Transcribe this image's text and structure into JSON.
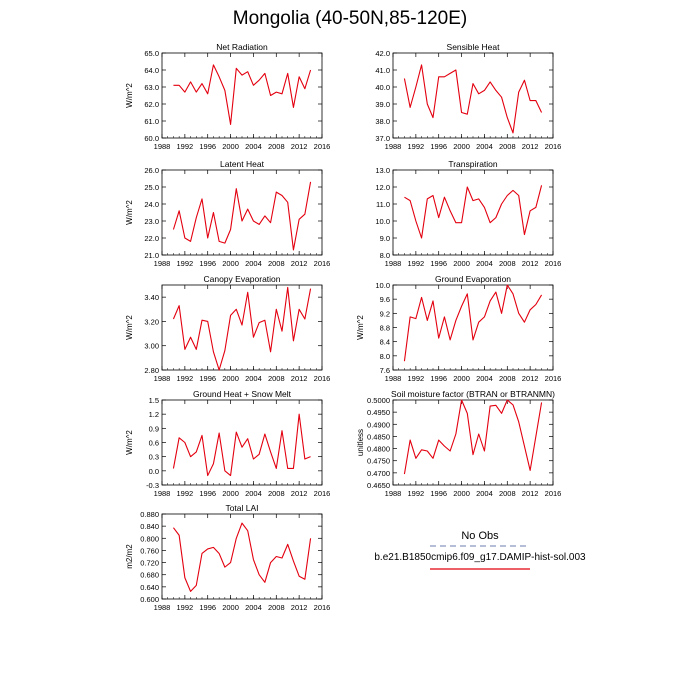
{
  "title": "Mongolia (40-50N,85-120E)",
  "colors": {
    "obs": "#9da7c9",
    "model": "#e3000f",
    "axis": "#000000"
  },
  "legend": {
    "obs_label": "No Obs",
    "model_label": "b.e21.B1850cmip6.f09_g17.DAMIP-hist-sol.003"
  },
  "chart_data": [
    {
      "type": "line",
      "title": "Net Radiation",
      "ylabel": "W/m^2",
      "xlim": [
        1988,
        2016
      ],
      "ylim": [
        60.0,
        65.0
      ],
      "xticks": [
        "1988",
        "1992",
        "1996",
        "2000",
        "2004",
        "2008",
        "2012",
        "2016"
      ],
      "yticks": [
        "60.0",
        "61.0",
        "62.0",
        "63.0",
        "64.0",
        "65.0"
      ],
      "x": [
        1990,
        1991,
        1992,
        1993,
        1994,
        1995,
        1996,
        1997,
        1998,
        1999,
        2000,
        2001,
        2002,
        2003,
        2004,
        2005,
        2006,
        2007,
        2008,
        2009,
        2010,
        2011,
        2012,
        2013,
        2014
      ],
      "series": [
        {
          "values": [
            63.1,
            63.1,
            62.7,
            63.3,
            62.7,
            63.2,
            62.6,
            64.3,
            63.6,
            62.8,
            60.8,
            64.1,
            63.7,
            63.9,
            63.1,
            63.4,
            63.8,
            62.5,
            62.7,
            62.6,
            63.8,
            61.8,
            63.6,
            62.9,
            64.0
          ]
        }
      ]
    },
    {
      "type": "line",
      "title": "Sensible Heat",
      "ylabel": "",
      "xlim": [
        1988,
        2016
      ],
      "ylim": [
        37.0,
        42.0
      ],
      "xticks": [
        "1988",
        "1992",
        "1996",
        "2000",
        "2004",
        "2008",
        "2012",
        "2016"
      ],
      "yticks": [
        "37.0",
        "38.0",
        "39.0",
        "40.0",
        "41.0",
        "42.0"
      ],
      "x": [
        1990,
        1991,
        1992,
        1993,
        1994,
        1995,
        1996,
        1997,
        1998,
        1999,
        2000,
        2001,
        2002,
        2003,
        2004,
        2005,
        2006,
        2007,
        2008,
        2009,
        2010,
        2011,
        2012,
        2013,
        2014
      ],
      "series": [
        {
          "values": [
            40.5,
            38.8,
            40.0,
            41.3,
            39.0,
            38.2,
            40.6,
            40.6,
            40.8,
            41.0,
            38.5,
            38.4,
            40.2,
            39.6,
            39.8,
            40.3,
            39.8,
            39.4,
            38.2,
            37.3,
            39.7,
            40.4,
            39.2,
            39.2,
            38.5
          ]
        }
      ]
    },
    {
      "type": "line",
      "title": "Latent Heat",
      "ylabel": "W/m^2",
      "xlim": [
        1988,
        2016
      ],
      "ylim": [
        21.0,
        26.0
      ],
      "xticks": [
        "1988",
        "1992",
        "1996",
        "2000",
        "2004",
        "2008",
        "2012",
        "2016"
      ],
      "yticks": [
        "21.0",
        "22.0",
        "23.0",
        "24.0",
        "25.0",
        "26.0"
      ],
      "x": [
        1990,
        1991,
        1992,
        1993,
        1994,
        1995,
        1996,
        1997,
        1998,
        1999,
        2000,
        2001,
        2002,
        2003,
        2004,
        2005,
        2006,
        2007,
        2008,
        2009,
        2010,
        2011,
        2012,
        2013,
        2014
      ],
      "series": [
        {
          "values": [
            22.5,
            23.6,
            22.0,
            21.8,
            23.2,
            24.3,
            22.0,
            23.5,
            21.8,
            21.7,
            22.5,
            24.9,
            23.0,
            23.7,
            23.0,
            22.8,
            23.3,
            22.9,
            24.7,
            24.5,
            24.1,
            21.3,
            23.1,
            23.4,
            25.3
          ]
        }
      ]
    },
    {
      "type": "line",
      "title": "Transpiration",
      "ylabel": "",
      "xlim": [
        1988,
        2016
      ],
      "ylim": [
        8.0,
        13.0
      ],
      "xticks": [
        "1988",
        "1992",
        "1996",
        "2000",
        "2004",
        "2008",
        "2012",
        "2016"
      ],
      "yticks": [
        "8.0",
        "9.0",
        "10.0",
        "11.0",
        "12.0",
        "13.0"
      ],
      "x": [
        1990,
        1991,
        1992,
        1993,
        1994,
        1995,
        1996,
        1997,
        1998,
        1999,
        2000,
        2001,
        2002,
        2003,
        2004,
        2005,
        2006,
        2007,
        2008,
        2009,
        2010,
        2011,
        2012,
        2013,
        2014
      ],
      "series": [
        {
          "values": [
            11.4,
            11.2,
            10.0,
            9.0,
            11.3,
            11.5,
            10.2,
            11.4,
            10.6,
            9.9,
            9.9,
            12.0,
            11.2,
            11.3,
            10.8,
            9.9,
            10.2,
            11.0,
            11.5,
            11.8,
            11.5,
            9.2,
            10.6,
            10.8,
            12.1
          ]
        }
      ]
    },
    {
      "type": "line",
      "title": "Canopy Evaporation",
      "ylabel": "W/m^2",
      "xlim": [
        1988,
        2016
      ],
      "ylim": [
        2.8,
        3.5
      ],
      "xticks": [
        "1988",
        "1992",
        "1996",
        "2000",
        "2004",
        "2008",
        "2012",
        "2016"
      ],
      "yticks": [
        "2.80",
        "3.00",
        "3.20",
        "3.40"
      ],
      "x": [
        1990,
        1991,
        1992,
        1993,
        1994,
        1995,
        1996,
        1997,
        1998,
        1999,
        2000,
        2001,
        2002,
        2003,
        2004,
        2005,
        2006,
        2007,
        2008,
        2009,
        2010,
        2011,
        2012,
        2013,
        2014
      ],
      "series": [
        {
          "values": [
            3.22,
            3.33,
            2.97,
            3.07,
            2.97,
            3.21,
            3.2,
            2.95,
            2.8,
            2.96,
            3.25,
            3.3,
            3.17,
            3.44,
            3.07,
            3.19,
            3.21,
            2.95,
            3.3,
            3.12,
            3.48,
            3.04,
            3.3,
            3.22,
            3.47
          ]
        }
      ]
    },
    {
      "type": "line",
      "title": "Ground Evaporation",
      "ylabel": "W/m^2",
      "xlim": [
        1988,
        2016
      ],
      "ylim": [
        7.6,
        10.0
      ],
      "xticks": [
        "1988",
        "1992",
        "1996",
        "2000",
        "2004",
        "2008",
        "2012",
        "2016"
      ],
      "yticks": [
        "7.6",
        "8.0",
        "8.4",
        "8.8",
        "9.2",
        "9.6",
        "10.0"
      ],
      "x": [
        1990,
        1991,
        1992,
        1993,
        1994,
        1995,
        1996,
        1997,
        1998,
        1999,
        2000,
        2001,
        2002,
        2003,
        2004,
        2005,
        2006,
        2007,
        2008,
        2009,
        2010,
        2011,
        2012,
        2013,
        2014
      ],
      "series": [
        {
          "values": [
            7.85,
            9.1,
            9.05,
            9.65,
            9.0,
            9.55,
            8.5,
            9.1,
            8.45,
            9.0,
            9.4,
            9.75,
            8.45,
            8.95,
            9.1,
            9.55,
            9.8,
            9.2,
            10.0,
            9.75,
            9.2,
            8.95,
            9.3,
            9.45,
            9.72
          ]
        }
      ]
    },
    {
      "type": "line",
      "title": "Ground Heat + Snow Melt",
      "ylabel": "W/m^2",
      "xlim": [
        1988,
        2016
      ],
      "ylim": [
        -0.3,
        1.5
      ],
      "xticks": [
        "1988",
        "1992",
        "1996",
        "2000",
        "2004",
        "2008",
        "2012",
        "2016"
      ],
      "yticks": [
        "-0.3",
        "0.0",
        "0.3",
        "0.6",
        "0.9",
        "1.2",
        "1.5"
      ],
      "x": [
        1990,
        1991,
        1992,
        1993,
        1994,
        1995,
        1996,
        1997,
        1998,
        1999,
        2000,
        2001,
        2002,
        2003,
        2004,
        2005,
        2006,
        2007,
        2008,
        2009,
        2010,
        2011,
        2012,
        2013,
        2014
      ],
      "series": [
        {
          "values": [
            0.05,
            0.7,
            0.6,
            0.3,
            0.4,
            0.75,
            -0.1,
            0.15,
            0.8,
            0.0,
            -0.1,
            0.82,
            0.5,
            0.68,
            0.25,
            0.35,
            0.78,
            0.4,
            0.05,
            0.85,
            0.05,
            0.05,
            1.2,
            0.25,
            0.3
          ]
        }
      ]
    },
    {
      "type": "line",
      "title": "Soil moisture factor (BTRAN or BTRANMN)",
      "ylabel": "unitless",
      "xlim": [
        1988,
        2016
      ],
      "ylim": [
        0.465,
        0.5
      ],
      "xticks": [
        "1988",
        "1992",
        "1996",
        "2000",
        "2004",
        "2008",
        "2012",
        "2016"
      ],
      "yticks": [
        "0.4650",
        "0.4700",
        "0.4750",
        "0.4800",
        "0.4850",
        "0.4900",
        "0.4950",
        "0.5000"
      ],
      "x": [
        1990,
        1991,
        1992,
        1993,
        1994,
        1995,
        1996,
        1997,
        1998,
        1999,
        2000,
        2001,
        2002,
        2003,
        2004,
        2005,
        2006,
        2007,
        2008,
        2009,
        2010,
        2011,
        2012,
        2013,
        2014
      ],
      "series": [
        {
          "values": [
            0.4695,
            0.4835,
            0.476,
            0.4795,
            0.479,
            0.476,
            0.4835,
            0.481,
            0.479,
            0.486,
            0.5,
            0.4945,
            0.4775,
            0.486,
            0.479,
            0.4975,
            0.4978,
            0.4945,
            0.5,
            0.498,
            0.491,
            0.481,
            0.471,
            0.485,
            0.499
          ]
        }
      ]
    },
    {
      "type": "line",
      "title": "Total LAI",
      "ylabel": "m2/m2",
      "xlim": [
        1988,
        2016
      ],
      "ylim": [
        0.6,
        0.88
      ],
      "xticks": [
        "1988",
        "1992",
        "1996",
        "2000",
        "2004",
        "2008",
        "2012",
        "2016"
      ],
      "yticks": [
        "0.600",
        "0.640",
        "0.680",
        "0.720",
        "0.760",
        "0.800",
        "0.840",
        "0.880"
      ],
      "x": [
        1990,
        1991,
        1992,
        1993,
        1994,
        1995,
        1996,
        1997,
        1998,
        1999,
        2000,
        2001,
        2002,
        2003,
        2004,
        2005,
        2006,
        2007,
        2008,
        2009,
        2010,
        2011,
        2012,
        2013,
        2014
      ],
      "series": [
        {
          "values": [
            0.835,
            0.81,
            0.67,
            0.625,
            0.645,
            0.75,
            0.765,
            0.77,
            0.75,
            0.705,
            0.72,
            0.8,
            0.85,
            0.825,
            0.73,
            0.68,
            0.655,
            0.72,
            0.74,
            0.735,
            0.78,
            0.725,
            0.675,
            0.665,
            0.8
          ]
        }
      ]
    }
  ]
}
